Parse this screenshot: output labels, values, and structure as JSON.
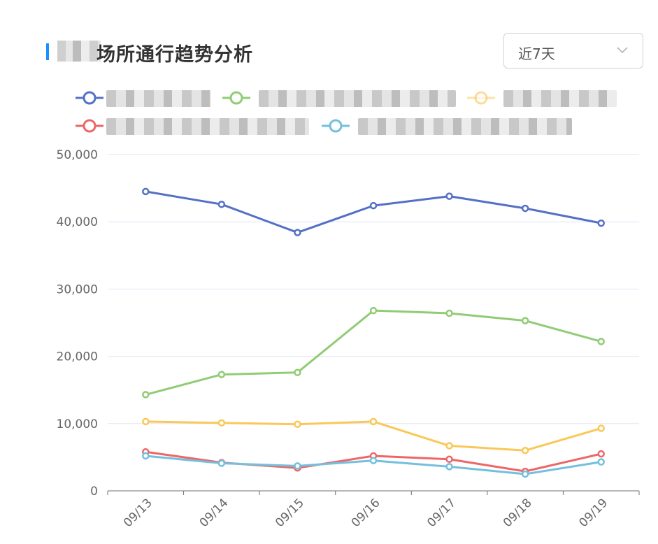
{
  "header": {
    "title": "场所通行趋势分析"
  },
  "range_select": {
    "value": "近7天"
  },
  "legend": {
    "items": [
      {
        "color": "#5470c6",
        "label": ""
      },
      {
        "color": "#91cc75",
        "label": ""
      },
      {
        "color": "#fac858",
        "label": ""
      },
      {
        "color": "#ee6666",
        "label": ""
      },
      {
        "color": "#73c0de",
        "label": ""
      }
    ]
  },
  "chart_data": {
    "type": "line",
    "categories": [
      "09/13",
      "09/14",
      "09/15",
      "09/16",
      "09/17",
      "09/18",
      "09/19"
    ],
    "ylim": [
      0,
      50000
    ],
    "yticks": [
      0,
      10000,
      20000,
      30000,
      40000,
      50000
    ],
    "ytick_labels": [
      "0",
      "10,000",
      "20,000",
      "30,000",
      "40,000",
      "50,000"
    ],
    "grid": true,
    "legend_position": "top",
    "series": [
      {
        "color": "#5470c6",
        "values": [
          44500,
          42600,
          38400,
          42400,
          43800,
          42000,
          39800
        ]
      },
      {
        "color": "#91cc75",
        "values": [
          14300,
          17300,
          17600,
          26800,
          26400,
          25300,
          22200
        ]
      },
      {
        "color": "#fac858",
        "values": [
          10300,
          10100,
          9900,
          10300,
          6700,
          6000,
          9300
        ]
      },
      {
        "color": "#ee6666",
        "values": [
          5800,
          4200,
          3400,
          5200,
          4700,
          2900,
          5500
        ]
      },
      {
        "color": "#73c0de",
        "values": [
          5200,
          4100,
          3700,
          4500,
          3600,
          2500,
          4300
        ]
      }
    ]
  }
}
